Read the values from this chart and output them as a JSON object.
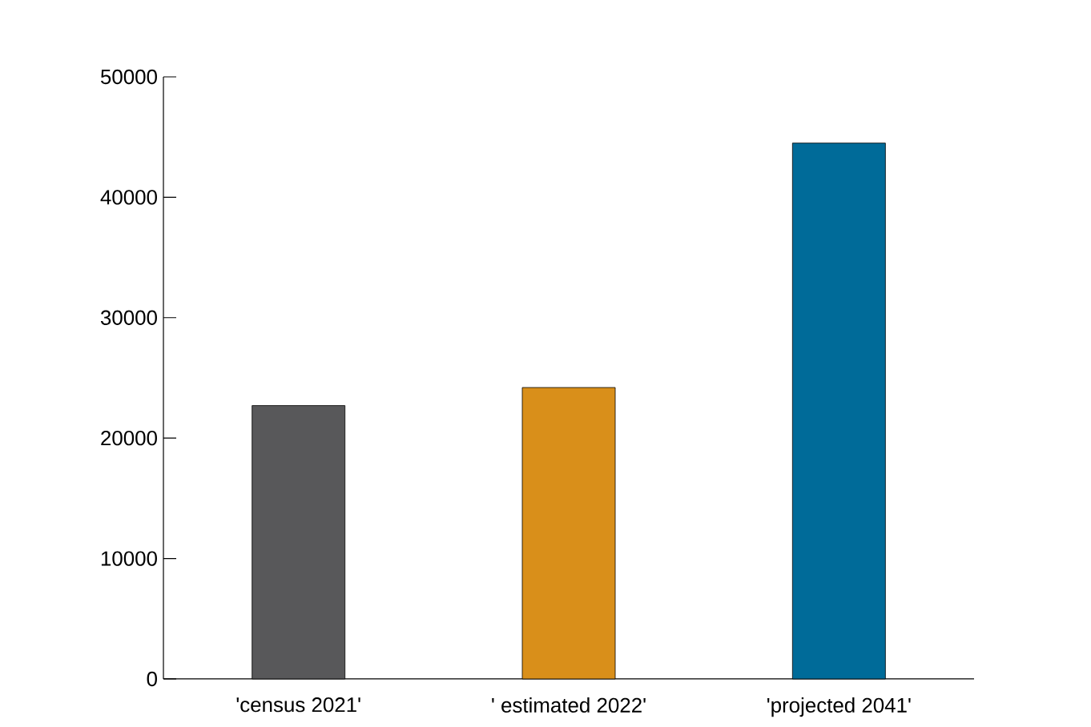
{
  "chart_data": {
    "type": "bar",
    "categories": [
      "'census 2021'",
      "' estimated 2022'",
      "'projected 2041'"
    ],
    "values": [
      22700,
      24200,
      44500
    ],
    "colors": [
      "#58585a",
      "#d98f1a",
      "#006b99"
    ],
    "ylim": [
      0,
      50000
    ],
    "yticks": [
      0,
      10000,
      20000,
      30000,
      40000,
      50000
    ],
    "grid": false
  }
}
